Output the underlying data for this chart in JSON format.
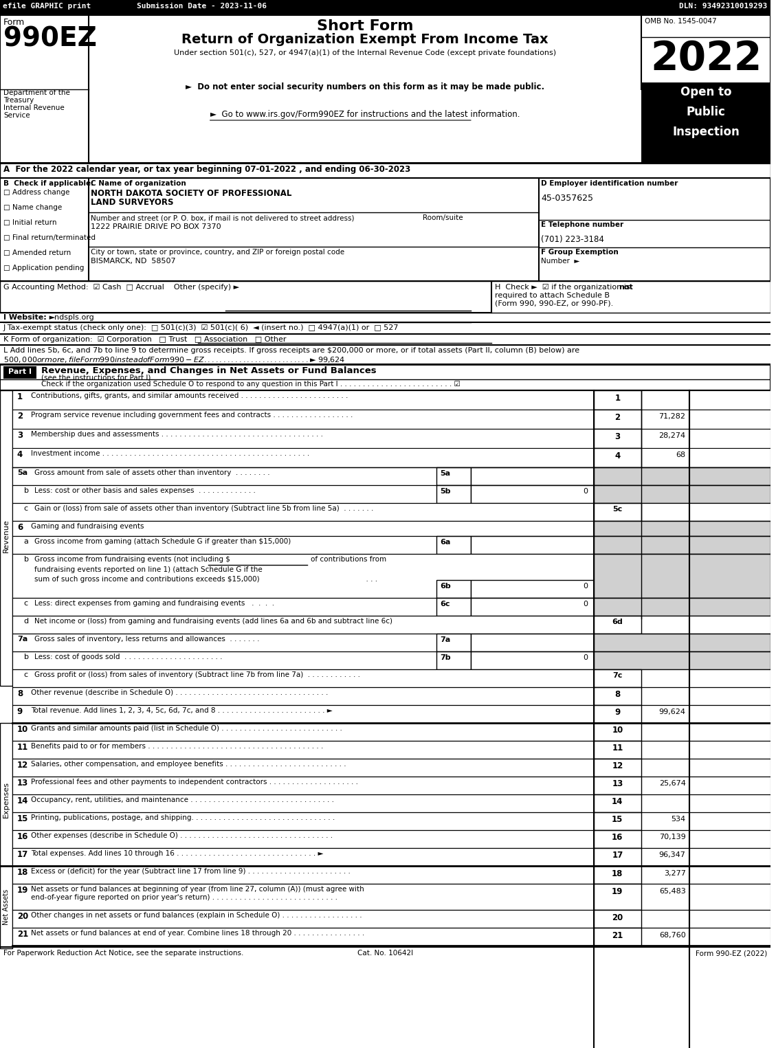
{
  "top_bar": {
    "left": "efile GRAPHIC print",
    "center": "Submission Date - 2023-11-06",
    "right": "DLN: 93492310019293"
  },
  "form_number": "990EZ",
  "form_label": "Form",
  "title_main": "Short Form",
  "title_sub": "Return of Organization Exempt From Income Tax",
  "title_sub2": "Under section 501(c), 527, or 4947(a)(1) of the Internal Revenue Code (except private foundations)",
  "bullet1": "►  Do not enter social security numbers on this form as it may be made public.",
  "bullet2": "►  Go to www.irs.gov/Form990EZ for instructions and the latest information.",
  "bullet2_url": "www.irs.gov/Form990EZ",
  "year": "2022",
  "open_box": "Open to\nPublic\nInspection",
  "omb": "OMB No. 1545-0047",
  "dept1": "Department of the",
  "dept2": "Treasury",
  "dept3": "Internal Revenue",
  "dept4": "Service",
  "section_a": "A  For the 2022 calendar year, or tax year beginning 07-01-2022 , and ending 06-30-2023",
  "section_b_label": "B  Check if applicable:",
  "checkboxes_b": [
    "Address change",
    "Name change",
    "Initial return",
    "Final return/terminated",
    "Amended return",
    "Application pending"
  ],
  "section_c_label": "C Name of organization",
  "org_name1": "NORTH DAKOTA SOCIETY OF PROFESSIONAL",
  "org_name2": "LAND SURVEYORS",
  "street_label": "Number and street (or P. O. box, if mail is not delivered to street address)",
  "room_label": "Room/suite",
  "street_value": "1222 PRAIRIE DRIVE PO BOX 7370",
  "city_label": "City or town, state or province, country, and ZIP or foreign postal code",
  "city_value": "BISMARCK, ND  58507",
  "section_d_label": "D Employer identification number",
  "ein": "45-0357625",
  "section_e_label": "E Telephone number",
  "phone": "(701) 223-3184",
  "section_f_label": "F Group Exemption",
  "section_f_label2": "Number  ►",
  "section_g": "G Accounting Method:  ☑ Cash  □ Accrual    Other (specify) ►",
  "section_h": "H  Check ►  ☑ if the organization is not\nrequired to attach Schedule B\n(Form 990, 990-EZ, or 990-PF).",
  "section_i": "I Website: ►indspls.org",
  "section_j": "J Tax-exempt status (check only one):  □ 501(c)(3)  ☑ 501(c)( 6)  ◄ (insert no.)  □ 4947(a)(1) or  □ 527",
  "section_k": "K Form of organization:  ☑ Corporation   □ Trust   □ Association   □ Other",
  "section_l1": "L Add lines 5b, 6c, and 7b to line 9 to determine gross receipts. If gross receipts are $200,000 or more, or if total assets (Part II, column (B) below) are",
  "section_l2": "$500,000 or more, file Form 990 instead of Form 990-EZ . . . . . . . . . . . . . . . . . . . . . . . . . . .  ► $ 99,624",
  "part1_title": "Revenue, Expenses, and Changes in Net Assets or Fund Balances",
  "part1_sub": "(see the instructions for Part I)",
  "part1_check": "Check if the organization used Schedule O to respond to any question in this Part I . . . . . . . . . . . . . . . . . . . . . . . . . ☑",
  "revenue_lines": [
    {
      "num": "1",
      "text": "Contributions, gifts, grants, and similar amounts received . . . . . . . . . . . . . . . . . . . . . . . .",
      "value": ""
    },
    {
      "num": "2",
      "text": "Program service revenue including government fees and contracts . . . . . . . . . . . . . . . . . .",
      "value": "71,282"
    },
    {
      "num": "3",
      "text": "Membership dues and assessments . . . . . . . . . . . . . . . . . . . . . . . . . . . . . . . . . . . .",
      "value": "28,274"
    },
    {
      "num": "4",
      "text": "Investment income . . . . . . . . . . . . . . . . . . . . . . . . . . . . . . . . . . . . . . . . . . . . . .",
      "value": "68"
    }
  ],
  "line5a_text": "Gross amount from sale of assets other than inventory  . . . . . . . .",
  "line5a_num": "5a",
  "line5a_val": "",
  "line5b_text": "Less: cost or other basis and sales expenses  . . . . . . . . . . . . .",
  "line5b_num": "5b",
  "line5b_val": "0",
  "line5c_text": "Gain or (loss) from sale of assets other than inventory (Subtract line 5b from line 5a)  . . . . . . .",
  "line5c_num": "5c",
  "line5c_val": "",
  "line6_text": "Gaming and fundraising events",
  "line6a_text": "Gross income from gaming (attach Schedule G if greater than $15,000)",
  "line6a_num": "6a",
  "line6a_val": "",
  "line6b_text1": "Gross income from fundraising events (not including $",
  "line6b_text2": "of contributions from",
  "line6b_text3": "fundraising events reported on line 1) (attach Schedule G if the",
  "line6b_text4": "sum of such gross income and contributions exceeds $15,000)",
  "line6b_num": "6b",
  "line6b_val": "0",
  "line6c_text": "Less: direct expenses from gaming and fundraising events  .  .  .",
  "line6c_num": "6c",
  "line6c_val": "0",
  "line6d_text": "Net income or (loss) from gaming and fundraising events (add lines 6a and 6b and subtract line 6c)",
  "line6d_num": "6d",
  "line6d_val": "",
  "line7a_text": "Gross sales of inventory, less returns and allowances  . . . . . . .",
  "line7a_num": "7a",
  "line7a_val": "",
  "line7b_text": "Less: cost of goods sold  . . . . . . . . . . . . . . . . . . . . . .",
  "line7b_num": "7b",
  "line7b_val": "0",
  "line7c_text": "Gross profit or (loss) from sales of inventory (Subtract line 7b from line 7a)  . . . . . . . . . . . .",
  "line7c_num": "7c",
  "line7c_val": "",
  "line8_text": "Other revenue (describe in Schedule O) . . . . . . . . . . . . . . . . . . . . . . . . . . . . . . . . . .",
  "line8_num": "8",
  "line8_val": "",
  "line9_text": "Total revenue. Add lines 1, 2, 3, 4, 5c, 6d, 7c, and 8 . . . . . . . . . . . . . . . . . . . . . . . . ►",
  "line9_num": "9",
  "line9_val": "99,624",
  "expenses_lines": [
    {
      "num": "10",
      "text": "Grants and similar amounts paid (list in Schedule O) . . . . . . . . . . . . . . . . . . . . . . . . . . .",
      "value": ""
    },
    {
      "num": "11",
      "text": "Benefits paid to or for members . . . . . . . . . . . . . . . . . . . . . . . . . . . . . . . . . . . . . . .",
      "value": ""
    },
    {
      "num": "12",
      "text": "Salaries, other compensation, and employee benefits . . . . . . . . . . . . . . . . . . . . . . . . . . .",
      "value": ""
    },
    {
      "num": "13",
      "text": "Professional fees and other payments to independent contractors . . . . . . . . . . . . . . . . . . . .",
      "value": "25,674"
    },
    {
      "num": "14",
      "text": "Occupancy, rent, utilities, and maintenance . . . . . . . . . . . . . . . . . . . . . . . . . . . . . . . .",
      "value": ""
    },
    {
      "num": "15",
      "text": "Printing, publications, postage, and shipping. . . . . . . . . . . . . . . . . . . . . . . . . . . . . . . .",
      "value": "534"
    },
    {
      "num": "16",
      "text": "Other expenses (describe in Schedule O) . . . . . . . . . . . . . . . . . . . . . . . . . . . . . . . . . .",
      "value": "70,139"
    },
    {
      "num": "17",
      "text": "Total expenses. Add lines 10 through 16 . . . . . . . . . . . . . . . . . . . . . . . . . . . . . . . ►",
      "value": "96,347"
    }
  ],
  "net_assets_lines": [
    {
      "num": "18",
      "text": "Excess or (deficit) for the year (Subtract line 17 from line 9) . . . . . . . . . . . . . . . . . . . . . . .",
      "value": "3,277"
    },
    {
      "num": "19",
      "text": "Net assets or fund balances at beginning of year (from line 27, column (A)) (must agree with\nend-of-year figure reported on prior year's return) . . . . . . . . . . . . . . . . . . . . . . . . . . . .",
      "value": "65,483"
    },
    {
      "num": "20",
      "text": "Other changes in net assets or fund balances (explain in Schedule O) . . . . . . . . . . . . . . . . . .",
      "value": ""
    },
    {
      "num": "21",
      "text": "Net assets or fund balances at end of year. Combine lines 18 through 20 . . . . . . . . . . . . . . . .",
      "value": "68,760"
    }
  ],
  "footer_left": "For Paperwork Reduction Act Notice, see the separate instructions.",
  "footer_cat": "Cat. No. 10642I",
  "footer_right": "Form 990-EZ (2022)"
}
